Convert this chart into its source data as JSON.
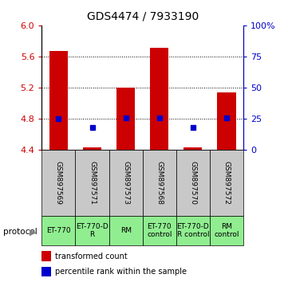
{
  "title": "GDS4474 / 7933190",
  "samples": [
    "GSM897569",
    "GSM897571",
    "GSM897573",
    "GSM897568",
    "GSM897570",
    "GSM897572"
  ],
  "bar_values": [
    5.67,
    4.43,
    5.2,
    5.71,
    4.43,
    5.14
  ],
  "percentile_values": [
    4.8,
    4.68,
    4.81,
    4.81,
    4.68,
    4.81
  ],
  "ymin": 4.4,
  "ymax": 6.0,
  "yticks_left": [
    4.4,
    4.8,
    5.2,
    5.6,
    6.0
  ],
  "yticks_right": [
    0,
    25,
    50,
    75,
    100
  ],
  "grid_lines": [
    4.8,
    5.2,
    5.6
  ],
  "bar_color": "#cc0000",
  "percentile_color": "#0000cc",
  "bar_width": 0.55,
  "protocols": [
    "ET-770",
    "ET-770-D\nR",
    "RM",
    "ET-770\ncontrol",
    "ET-770-D\nR control",
    "RM\ncontrol"
  ],
  "protocol_label": "protocol",
  "legend_bar_label": "transformed count",
  "legend_pct_label": "percentile rank within the sample",
  "left_axis_color": "#cc0000",
  "right_axis_color": "#0000cc",
  "bg_sample_labels": "#c8c8c8",
  "bg_protocol": "#90ee90",
  "sample_label_fontsize": 6.5,
  "protocol_fontsize": 6.5,
  "title_fontsize": 10
}
